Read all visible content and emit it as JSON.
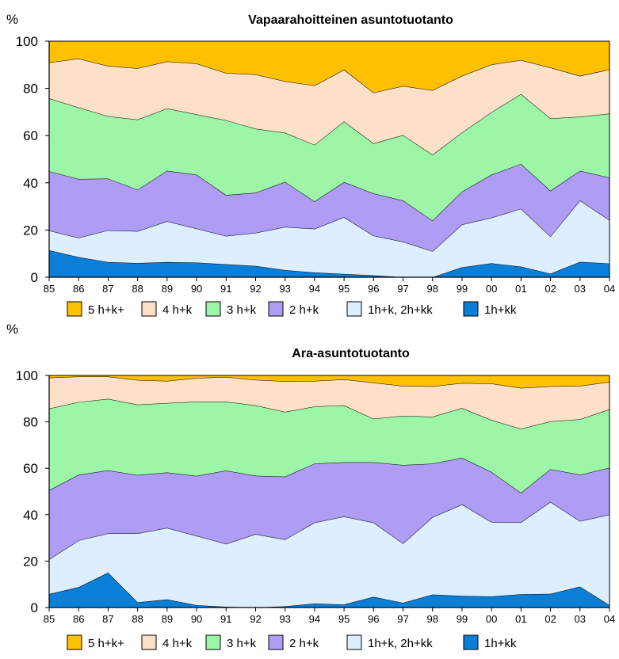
{
  "chart_data": [
    {
      "type": "area",
      "stacked": true,
      "title": "Vapaarahoitteinen asuntotuotanto",
      "ylabel": "%",
      "ylim": [
        0,
        100
      ],
      "yticks": [
        0,
        20,
        40,
        60,
        80,
        100
      ],
      "categories": [
        "85",
        "86",
        "87",
        "88",
        "89",
        "90",
        "91",
        "92",
        "93",
        "94",
        "95",
        "96",
        "97",
        "98",
        "99",
        "00",
        "01",
        "02",
        "03",
        "04"
      ],
      "legend_position": "bottom",
      "series": [
        {
          "name": "1h+kk",
          "color": "#0A7FD8",
          "values": [
            11.4,
            8.5,
            6.4,
            6.0,
            6.4,
            6.2,
            5.5,
            4.8,
            3.0,
            2.0,
            1.4,
            0.8,
            0.0,
            0.0,
            4.2,
            5.9,
            4.5,
            1.5,
            6.5,
            5.8
          ]
        },
        {
          "name": "1h+k, 2h+kk",
          "color": "#DDEEFF",
          "values": [
            8.4,
            8.2,
            13.5,
            13.5,
            17.3,
            14.4,
            12.0,
            14.0,
            18.3,
            18.5,
            24.0,
            16.8,
            15.0,
            11.0,
            18.1,
            19.3,
            24.5,
            15.8,
            26.0,
            18.4
          ]
        },
        {
          "name": "2 h+k",
          "color": "#AE9CF5",
          "values": [
            25.1,
            24.9,
            21.9,
            17.6,
            21.4,
            22.8,
            17.3,
            17.0,
            19.1,
            11.6,
            14.9,
            17.9,
            17.5,
            13.0,
            14.0,
            18.2,
            19.0,
            19.3,
            12.6,
            18.0
          ]
        },
        {
          "name": "3 h+k",
          "color": "#9DF5A7",
          "values": [
            30.9,
            30.3,
            26.4,
            29.7,
            26.4,
            25.6,
            31.7,
            27.1,
            20.8,
            24.0,
            25.7,
            21.2,
            27.7,
            27.9,
            25.0,
            26.5,
            29.6,
            30.7,
            22.9,
            27.1
          ]
        },
        {
          "name": "4 h+k",
          "color": "#FCE0C8",
          "values": [
            15.2,
            20.7,
            21.3,
            21.7,
            19.9,
            21.5,
            20.0,
            23.0,
            21.8,
            25.1,
            21.9,
            21.5,
            20.8,
            27.3,
            24.0,
            20.2,
            14.4,
            21.5,
            17.3,
            18.7
          ]
        },
        {
          "name": "5 h+k+",
          "color": "#FFC000",
          "values": [
            9.0,
            7.4,
            10.5,
            11.5,
            8.6,
            9.5,
            13.5,
            14.1,
            17.0,
            18.8,
            12.1,
            21.8,
            19.0,
            20.8,
            14.7,
            9.9,
            8.0,
            11.2,
            14.7,
            12.0
          ]
        }
      ]
    },
    {
      "type": "area",
      "stacked": true,
      "title": "Ara-asuntotuotanto",
      "ylabel": "%",
      "ylim": [
        0,
        100
      ],
      "yticks": [
        0,
        20,
        40,
        60,
        80,
        100
      ],
      "categories": [
        "85",
        "86",
        "87",
        "88",
        "89",
        "90",
        "91",
        "92",
        "93",
        "94",
        "95",
        "96",
        "97",
        "98",
        "99",
        "00",
        "01",
        "02",
        "03",
        "04"
      ],
      "legend_position": "bottom",
      "series": [
        {
          "name": "1h+kk",
          "color": "#0A7FD8",
          "values": [
            5.8,
            8.8,
            15.0,
            2.2,
            3.5,
            1.0,
            0.3,
            0.0,
            0.5,
            1.7,
            1.3,
            4.6,
            2.0,
            5.6,
            5.0,
            4.8,
            5.7,
            5.9,
            9.0,
            1.0
          ]
        },
        {
          "name": "1h+k, 2h+kk",
          "color": "#DDEEFF",
          "values": [
            14.9,
            20.1,
            16.9,
            29.7,
            30.8,
            29.9,
            27.1,
            31.6,
            28.8,
            34.9,
            37.9,
            32.0,
            25.6,
            33.3,
            39.4,
            32.0,
            31.0,
            39.6,
            28.2,
            39.0
          ]
        },
        {
          "name": "2 h+k",
          "color": "#AE9CF5",
          "values": [
            29.8,
            28.3,
            27.2,
            25.2,
            23.9,
            25.8,
            31.6,
            25.2,
            27.1,
            25.4,
            23.4,
            26.0,
            33.8,
            23.1,
            20.1,
            21.6,
            12.7,
            14.1,
            20.0,
            20.2
          ]
        },
        {
          "name": "3 h+k",
          "color": "#9DF5A7",
          "values": [
            35.2,
            31.3,
            30.8,
            30.3,
            29.9,
            32.0,
            29.7,
            30.3,
            27.9,
            24.6,
            24.5,
            18.7,
            21.2,
            20.2,
            21.4,
            22.4,
            27.6,
            20.6,
            23.9,
            25.2
          ]
        },
        {
          "name": "4 h+k",
          "color": "#FCE0C8",
          "values": [
            13.3,
            11.0,
            9.6,
            10.6,
            9.5,
            10.2,
            10.6,
            11.0,
            13.2,
            11.0,
            11.2,
            15.6,
            12.9,
            13.1,
            10.8,
            15.7,
            17.6,
            15.1,
            14.4,
            11.8
          ]
        },
        {
          "name": "5 h+k+",
          "color": "#FFC000",
          "values": [
            1.0,
            0.5,
            0.5,
            2.0,
            2.4,
            1.1,
            0.7,
            1.9,
            2.5,
            2.4,
            1.7,
            3.1,
            4.5,
            4.7,
            3.3,
            3.5,
            5.4,
            4.7,
            4.5,
            2.8
          ]
        }
      ]
    }
  ]
}
